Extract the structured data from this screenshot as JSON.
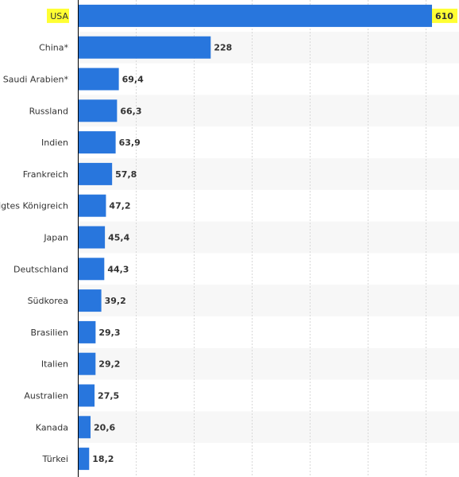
{
  "chart_data": {
    "type": "bar",
    "orientation": "horizontal",
    "categories": [
      "USA",
      "China*",
      "Saudi Arabien*",
      "Russland",
      "Indien",
      "Frankreich",
      "Vereinigtes Königreich",
      "Japan",
      "Deutschland",
      "Südkorea",
      "Brasilien",
      "Italien",
      "Australien",
      "Kanada",
      "Türkei"
    ],
    "values": [
      610,
      228,
      69.4,
      66.3,
      63.9,
      57.8,
      47.2,
      45.4,
      44.3,
      39.2,
      29.3,
      29.2,
      27.5,
      20.6,
      18.2
    ],
    "value_labels": [
      "610",
      "228",
      "69,4",
      "66,3",
      "63,9",
      "57,8",
      "47,2",
      "45,4",
      "44,3",
      "39,2",
      "29,3",
      "29,2",
      "27,5",
      "20,6",
      "18,2"
    ],
    "highlighted_category": "USA",
    "xlim": [
      0,
      650
    ],
    "grid": true,
    "title": "",
    "xlabel": "",
    "ylabel": "",
    "colors": {
      "bar": "#2876dd",
      "highlight": "#ffff33",
      "band_alt": "#f7f7f7",
      "grid": "#d8d8d8",
      "axis": "#000000",
      "text": "#333333"
    }
  }
}
